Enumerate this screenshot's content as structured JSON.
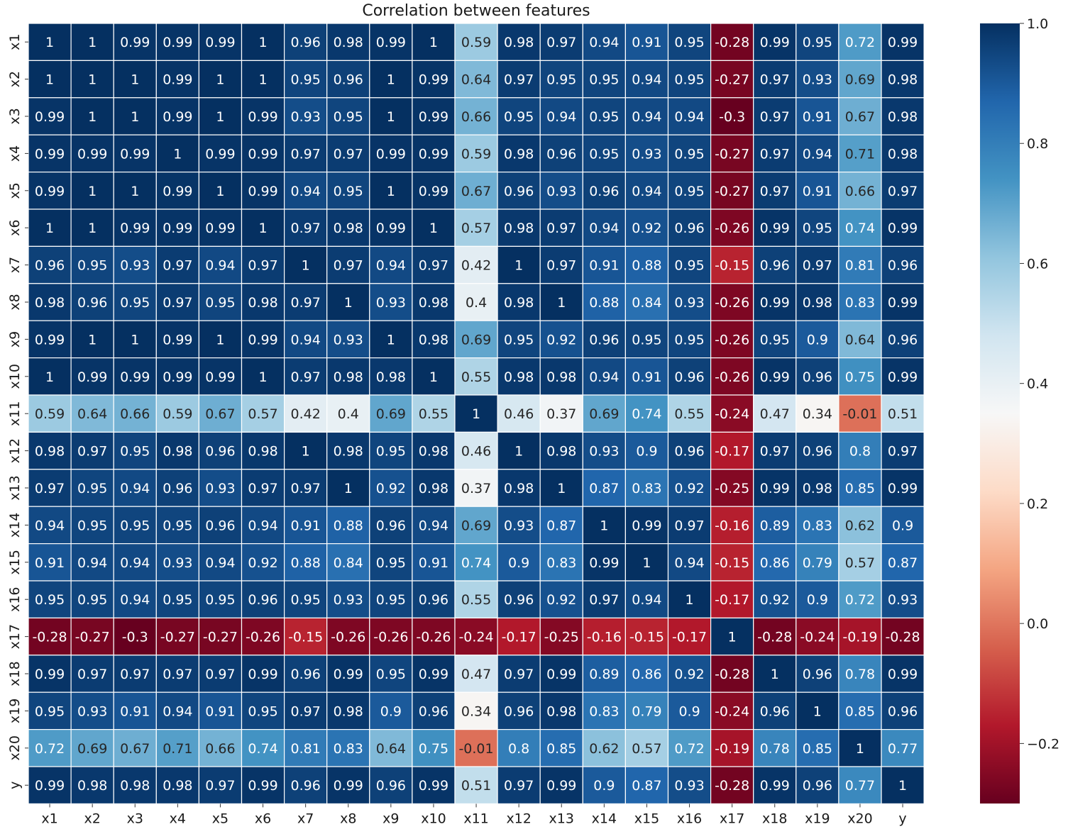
{
  "chart_data": {
    "type": "heatmap",
    "title": "Correlation between features",
    "xlabel": "",
    "ylabel": "",
    "x_labels": [
      "x1",
      "x2",
      "x3",
      "x4",
      "x5",
      "x6",
      "x7",
      "x8",
      "x9",
      "x10",
      "x11",
      "x12",
      "x13",
      "x14",
      "x15",
      "x16",
      "x17",
      "x18",
      "x19",
      "x20",
      "y"
    ],
    "y_labels": [
      "x1",
      "x2",
      "x3",
      "x4",
      "x5",
      "x6",
      "x7",
      "x8",
      "x9",
      "x10",
      "x11",
      "x12",
      "x13",
      "x14",
      "x15",
      "x16",
      "x17",
      "x18",
      "x19",
      "x20",
      "y"
    ],
    "values": [
      [
        1,
        1,
        0.99,
        0.99,
        0.99,
        1,
        0.96,
        0.98,
        0.99,
        1,
        0.59,
        0.98,
        0.97,
        0.94,
        0.91,
        0.95,
        -0.28,
        0.99,
        0.95,
        0.72,
        0.99
      ],
      [
        1,
        1,
        1,
        0.99,
        1,
        1,
        0.95,
        0.96,
        1,
        0.99,
        0.64,
        0.97,
        0.95,
        0.95,
        0.94,
        0.95,
        -0.27,
        0.97,
        0.93,
        0.69,
        0.98
      ],
      [
        0.99,
        1,
        1,
        0.99,
        1,
        0.99,
        0.93,
        0.95,
        1,
        0.99,
        0.66,
        0.95,
        0.94,
        0.95,
        0.94,
        0.94,
        -0.3,
        0.97,
        0.91,
        0.67,
        0.98
      ],
      [
        0.99,
        0.99,
        0.99,
        1,
        0.99,
        0.99,
        0.97,
        0.97,
        0.99,
        0.99,
        0.59,
        0.98,
        0.96,
        0.95,
        0.93,
        0.95,
        -0.27,
        0.97,
        0.94,
        0.71,
        0.98
      ],
      [
        0.99,
        1,
        1,
        0.99,
        1,
        0.99,
        0.94,
        0.95,
        1,
        0.99,
        0.67,
        0.96,
        0.93,
        0.96,
        0.94,
        0.95,
        -0.27,
        0.97,
        0.91,
        0.66,
        0.97
      ],
      [
        1,
        1,
        0.99,
        0.99,
        0.99,
        1,
        0.97,
        0.98,
        0.99,
        1,
        0.57,
        0.98,
        0.97,
        0.94,
        0.92,
        0.96,
        -0.26,
        0.99,
        0.95,
        0.74,
        0.99
      ],
      [
        0.96,
        0.95,
        0.93,
        0.97,
        0.94,
        0.97,
        1,
        0.97,
        0.94,
        0.97,
        0.42,
        1,
        0.97,
        0.91,
        0.88,
        0.95,
        -0.15,
        0.96,
        0.97,
        0.81,
        0.96
      ],
      [
        0.98,
        0.96,
        0.95,
        0.97,
        0.95,
        0.98,
        0.97,
        1,
        0.93,
        0.98,
        0.4,
        0.98,
        1,
        0.88,
        0.84,
        0.93,
        -0.26,
        0.99,
        0.98,
        0.83,
        0.99
      ],
      [
        0.99,
        1,
        1,
        0.99,
        1,
        0.99,
        0.94,
        0.93,
        1,
        0.98,
        0.69,
        0.95,
        0.92,
        0.96,
        0.95,
        0.95,
        -0.26,
        0.95,
        0.9,
        0.64,
        0.96
      ],
      [
        1,
        0.99,
        0.99,
        0.99,
        0.99,
        1,
        0.97,
        0.98,
        0.98,
        1,
        0.55,
        0.98,
        0.98,
        0.94,
        0.91,
        0.96,
        -0.26,
        0.99,
        0.96,
        0.75,
        0.99
      ],
      [
        0.59,
        0.64,
        0.66,
        0.59,
        0.67,
        0.57,
        0.42,
        0.4,
        0.69,
        0.55,
        1,
        0.46,
        0.37,
        0.69,
        0.74,
        0.55,
        -0.24,
        0.47,
        0.34,
        -0.01,
        0.51
      ],
      [
        0.98,
        0.97,
        0.95,
        0.98,
        0.96,
        0.98,
        1,
        0.98,
        0.95,
        0.98,
        0.46,
        1,
        0.98,
        0.93,
        0.9,
        0.96,
        -0.17,
        0.97,
        0.96,
        0.8,
        0.97
      ],
      [
        0.97,
        0.95,
        0.94,
        0.96,
        0.93,
        0.97,
        0.97,
        1,
        0.92,
        0.98,
        0.37,
        0.98,
        1,
        0.87,
        0.83,
        0.92,
        -0.25,
        0.99,
        0.98,
        0.85,
        0.99
      ],
      [
        0.94,
        0.95,
        0.95,
        0.95,
        0.96,
        0.94,
        0.91,
        0.88,
        0.96,
        0.94,
        0.69,
        0.93,
        0.87,
        1,
        0.99,
        0.97,
        -0.16,
        0.89,
        0.83,
        0.62,
        0.9
      ],
      [
        0.91,
        0.94,
        0.94,
        0.93,
        0.94,
        0.92,
        0.88,
        0.84,
        0.95,
        0.91,
        0.74,
        0.9,
        0.83,
        0.99,
        1,
        0.94,
        -0.15,
        0.86,
        0.79,
        0.57,
        0.87
      ],
      [
        0.95,
        0.95,
        0.94,
        0.95,
        0.95,
        0.96,
        0.95,
        0.93,
        0.95,
        0.96,
        0.55,
        0.96,
        0.92,
        0.97,
        0.94,
        1,
        -0.17,
        0.92,
        0.9,
        0.72,
        0.93
      ],
      [
        -0.28,
        -0.27,
        -0.3,
        -0.27,
        -0.27,
        -0.26,
        -0.15,
        -0.26,
        -0.26,
        -0.26,
        -0.24,
        -0.17,
        -0.25,
        -0.16,
        -0.15,
        -0.17,
        1,
        -0.28,
        -0.24,
        -0.19,
        -0.28
      ],
      [
        0.99,
        0.97,
        0.97,
        0.97,
        0.97,
        0.99,
        0.96,
        0.99,
        0.95,
        0.99,
        0.47,
        0.97,
        0.99,
        0.89,
        0.86,
        0.92,
        -0.28,
        1,
        0.96,
        0.78,
        0.99
      ],
      [
        0.95,
        0.93,
        0.91,
        0.94,
        0.91,
        0.95,
        0.97,
        0.98,
        0.9,
        0.96,
        0.34,
        0.96,
        0.98,
        0.83,
        0.79,
        0.9,
        -0.24,
        0.96,
        1,
        0.85,
        0.96
      ],
      [
        0.72,
        0.69,
        0.67,
        0.71,
        0.66,
        0.74,
        0.81,
        0.83,
        0.64,
        0.75,
        -0.01,
        0.8,
        0.85,
        0.62,
        0.57,
        0.72,
        -0.19,
        0.78,
        0.85,
        1,
        0.77
      ],
      [
        0.99,
        0.98,
        0.98,
        0.98,
        0.97,
        0.99,
        0.96,
        0.99,
        0.96,
        0.99,
        0.51,
        0.97,
        0.99,
        0.9,
        0.87,
        0.93,
        -0.28,
        0.99,
        0.96,
        0.77,
        1
      ]
    ],
    "colormap": "RdBu",
    "vmin": -0.3,
    "vmax": 1.0,
    "colorbar": {
      "ticks": [
        1.0,
        0.8,
        0.6,
        0.4,
        0.2,
        0.0,
        -0.2
      ],
      "tick_labels": [
        "1.0",
        "0.8",
        "0.6",
        "0.4",
        "0.2",
        "0.0",
        "−0.2"
      ]
    },
    "colormap_stops": [
      "#67001f",
      "#b2182b",
      "#d6604d",
      "#f4a582",
      "#fddbc7",
      "#f7f7f7",
      "#d1e5f0",
      "#92c5de",
      "#4393c3",
      "#2166ac",
      "#053061"
    ]
  }
}
